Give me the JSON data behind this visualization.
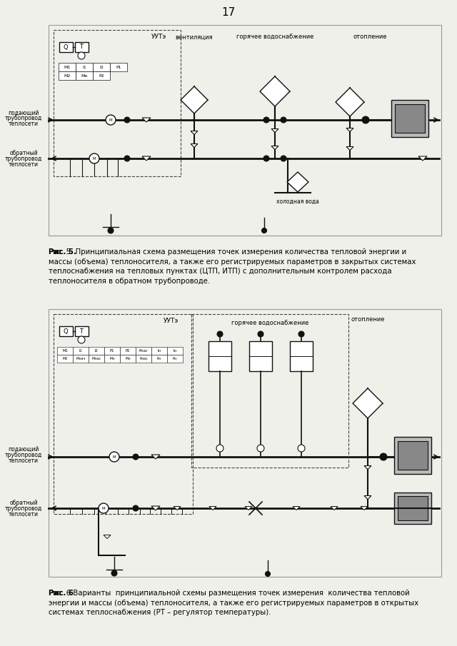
{
  "page_number": "17",
  "background_color": "#f0f0eb",
  "fig5_caption_bold": "Рис. 5.",
  "fig5_caption_rest": " Принципиальная схема размещения точек измерения количества тепловой энергии и\nмассы (объема) теплоносителя, а также его регистрируемых параметров в закрытых системах\nтеплоснабжения на тепловых пунктах (ЦТП, ИТП) с дополнительным контролем расхода\nтеплоносителя в обратном трубопроводе.",
  "fig6_caption_bold": "Рис. 6",
  "fig6_caption_rest": " Варианты  принципиальной схемы размещения точек измерения  количества тепловой\nэнергии и массы (объема) теплоносителя, а также его регистрируемых параметров в открытых\nсистемах теплоснабжения (РТ – регулятор температуры).",
  "text_color": "#000000",
  "line_color": "#111111",
  "gray_fill": "#bbbbbb",
  "dark_gray_fill": "#888888",
  "white_fill": "#ffffff",
  "dashed_color": "#444444"
}
